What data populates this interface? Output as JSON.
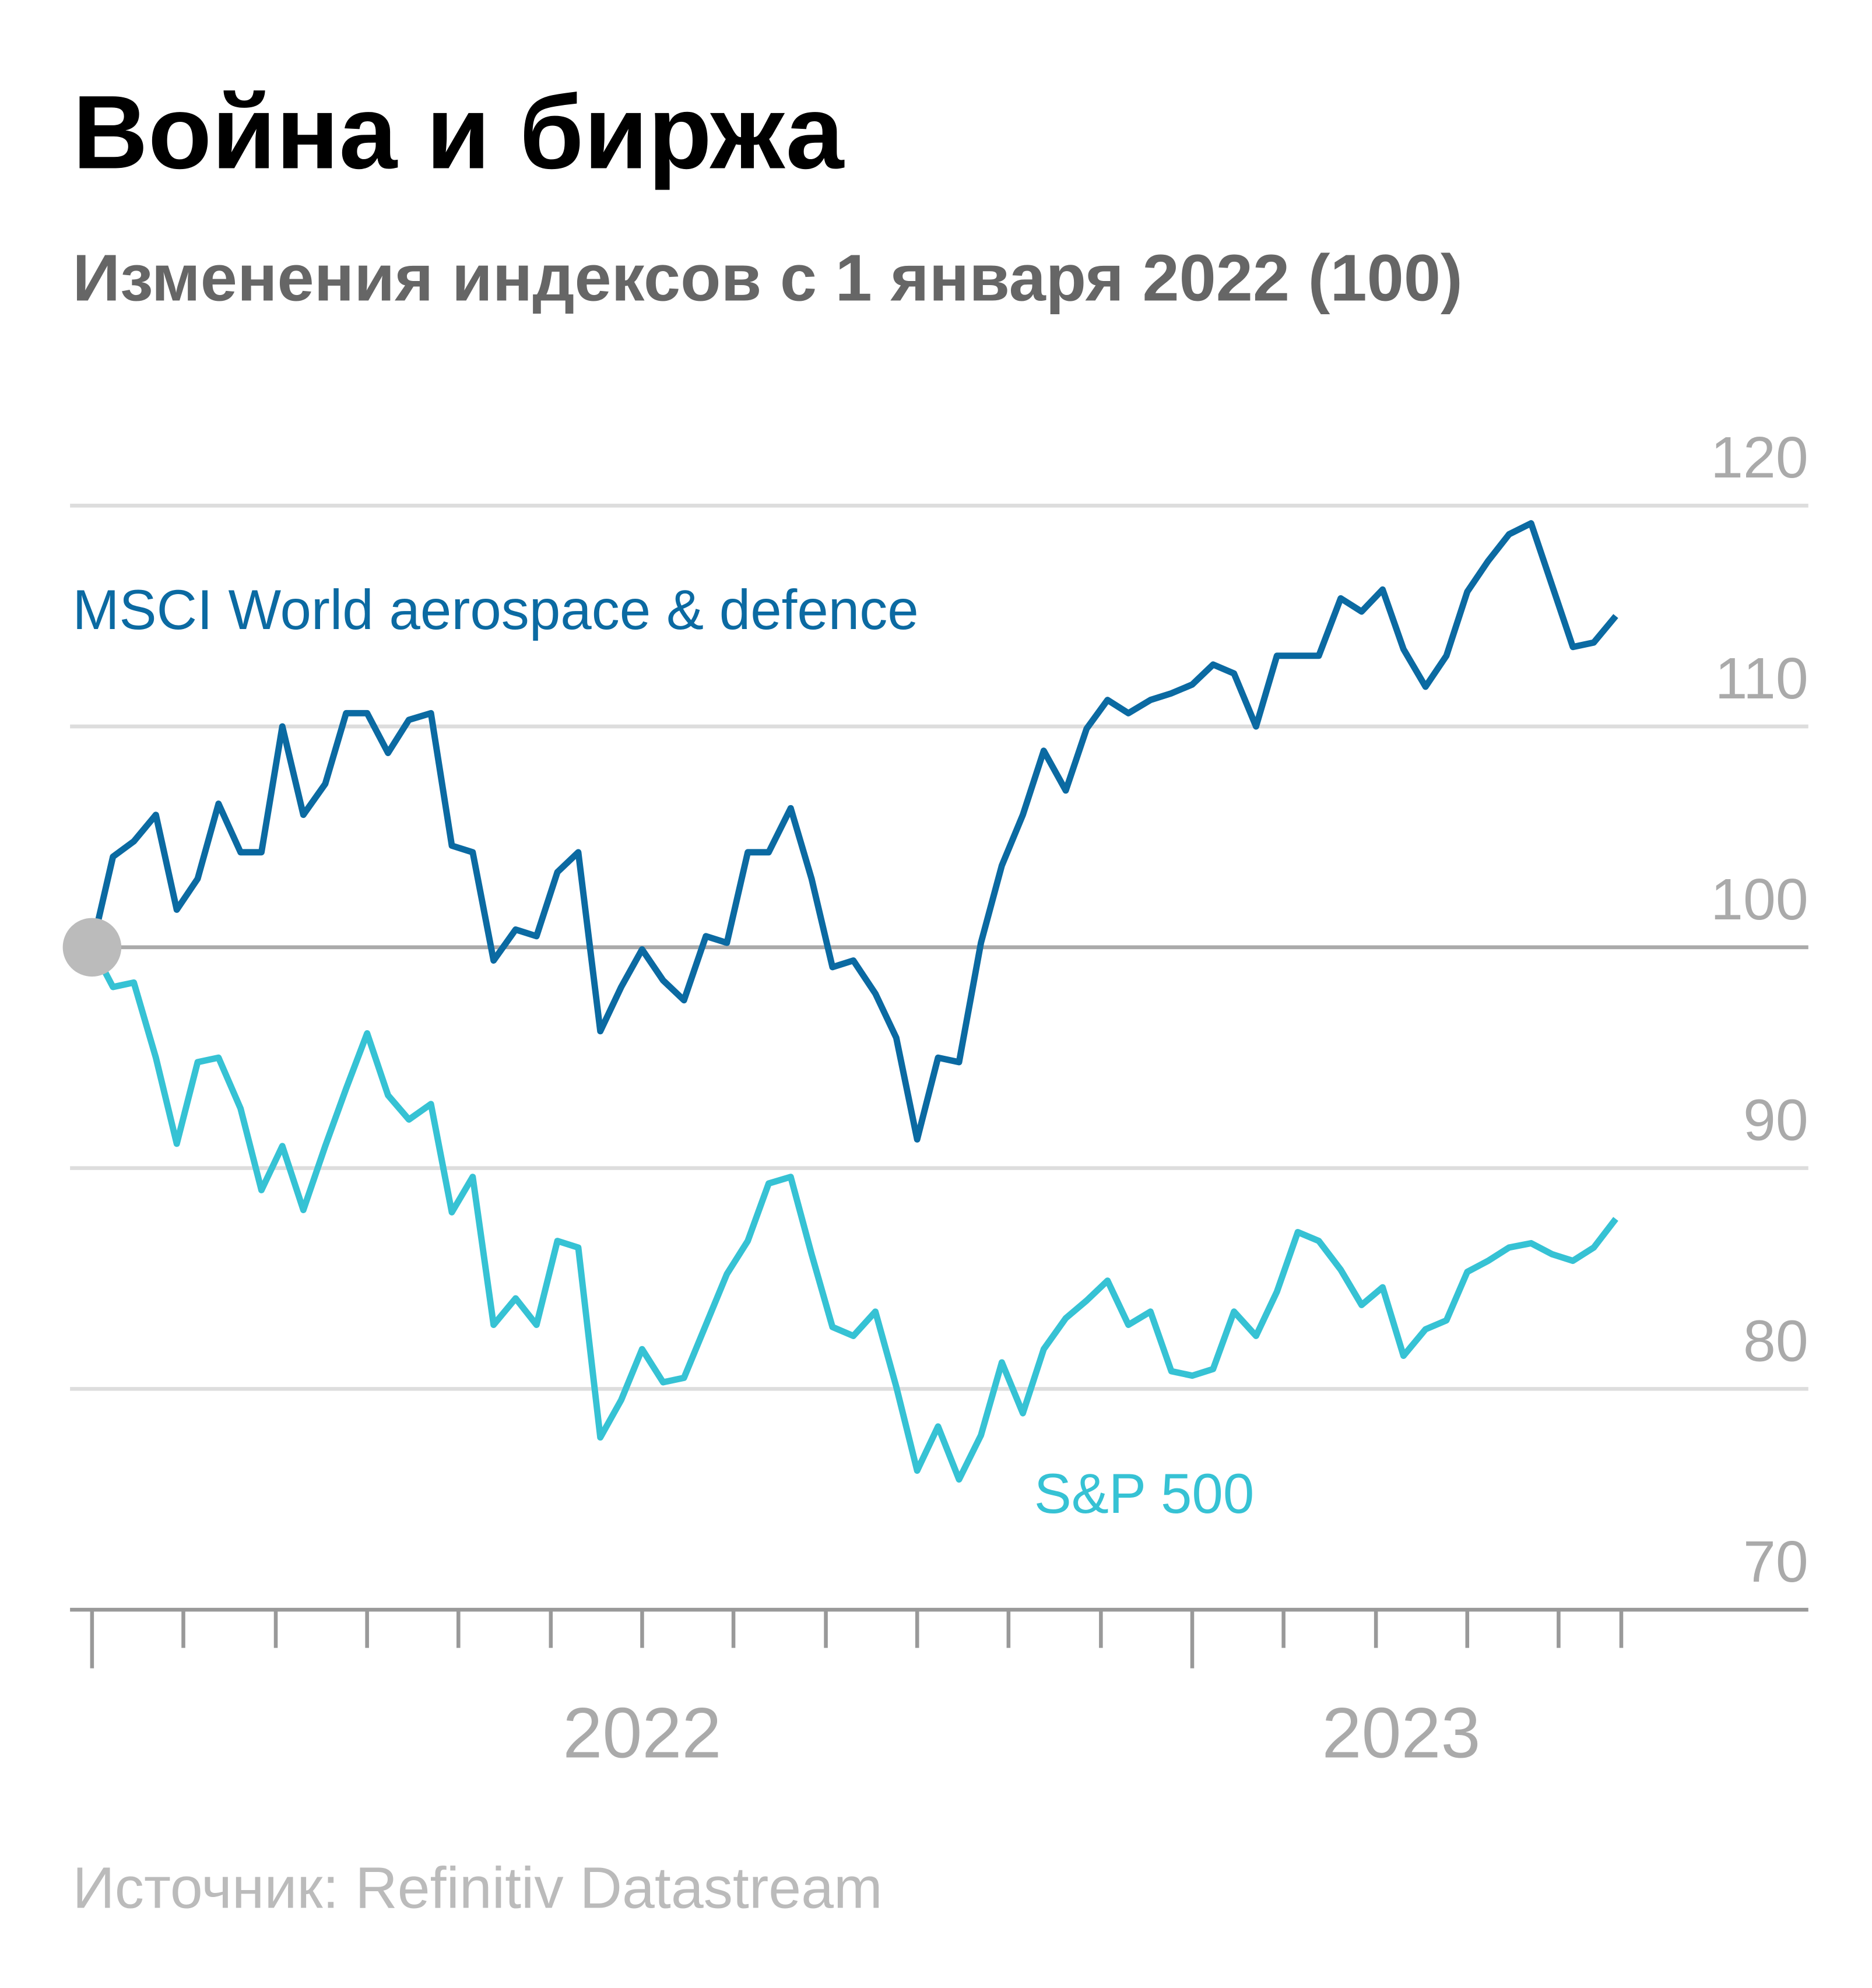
{
  "chart_data": {
    "type": "line",
    "title": "Война и биржа",
    "subtitle": "Изменения индексов с 1 января 2022 (100)",
    "source": "Источник: Refinitiv Datastream",
    "x": [
      2022,
      2022.019,
      2022.038,
      2022.058,
      2022.077,
      2022.096,
      2022.115,
      2022.135,
      2022.154,
      2022.173,
      2022.192,
      2022.212,
      2022.231,
      2022.25,
      2022.269,
      2022.288,
      2022.308,
      2022.327,
      2022.346,
      2022.365,
      2022.385,
      2022.404,
      2022.423,
      2022.442,
      2022.462,
      2022.481,
      2022.5,
      2022.519,
      2022.538,
      2022.558,
      2022.577,
      2022.596,
      2022.615,
      2022.635,
      2022.654,
      2022.673,
      2022.692,
      2022.712,
      2022.731,
      2022.75,
      2022.769,
      2022.788,
      2022.808,
      2022.827,
      2022.846,
      2022.865,
      2022.885,
      2022.904,
      2022.923,
      2022.942,
      2022.962,
      2022.981,
      2023,
      2023.019,
      2023.038,
      2023.058,
      2023.077,
      2023.096,
      2023.115,
      2023.135,
      2023.154,
      2023.173,
      2023.192,
      2023.212,
      2023.231,
      2023.25,
      2023.269,
      2023.288,
      2023.308,
      2023.327,
      2023.346,
      2023.365,
      2023.385
    ],
    "series": [
      {
        "name": "MSCI World aerospace & defence",
        "color": "#0b6aa2",
        "values": [
          100,
          104.1,
          104.8,
          106.0,
          101.7,
          103.1,
          106.5,
          104.3,
          104.3,
          110.0,
          106.0,
          107.4,
          110.6,
          110.6,
          108.8,
          110.3,
          110.6,
          104.6,
          104.3,
          99.4,
          100.8,
          100.5,
          103.4,
          104.3,
          96.2,
          98.2,
          99.9,
          98.5,
          97.6,
          100.5,
          100.2,
          104.3,
          104.3,
          106.3,
          103.1,
          99.1,
          99.4,
          97.9,
          95.9,
          91.3,
          95.0,
          94.8,
          100.2,
          103.7,
          106.0,
          108.9,
          107.1,
          109.9,
          111.2,
          110.6,
          111.2,
          111.5,
          111.9,
          112.8,
          112.4,
          110.0,
          113.2,
          113.2,
          113.2,
          115.8,
          115.2,
          116.2,
          113.5,
          111.8,
          113.2,
          116.1,
          117.5,
          118.7,
          119.2,
          116.4,
          113.6,
          113.8,
          115.0
        ]
      },
      {
        "name": "S&P 500",
        "color": "#36c2d4",
        "values": [
          100,
          98.2,
          98.4,
          95.0,
          91.1,
          94.8,
          95.0,
          92.7,
          89.0,
          91.0,
          88.1,
          91.0,
          93.6,
          96.1,
          93.3,
          92.2,
          92.9,
          88.0,
          89.6,
          82.9,
          84.1,
          82.9,
          86.7,
          86.4,
          77.8,
          79.5,
          81.8,
          80.3,
          80.5,
          82.9,
          85.2,
          86.7,
          89.3,
          89.6,
          86.1,
          82.8,
          82.4,
          83.5,
          80.1,
          76.3,
          78.3,
          75.9,
          77.9,
          81.2,
          78.9,
          81.8,
          83.2,
          84.0,
          84.9,
          82.9,
          83.5,
          80.8,
          80.6,
          80.9,
          83.5,
          82.4,
          84.4,
          87.1,
          86.7,
          85.4,
          83.8,
          84.6,
          81.5,
          82.7,
          83.1,
          85.3,
          85.8,
          86.4,
          86.6,
          86.1,
          85.8,
          86.4,
          87.7
        ]
      }
    ],
    "xlim": [
      2021.98,
      2023.56
    ],
    "xticks": [
      {
        "value": 2022.5,
        "label": "2022"
      },
      {
        "value": 2023.19,
        "label": "2023"
      }
    ],
    "x_minor_ticks": [
      2022,
      2022.083,
      2022.167,
      2022.25,
      2022.333,
      2022.417,
      2022.5,
      2022.583,
      2022.667,
      2022.75,
      2022.833,
      2022.917,
      2023,
      2023.083,
      2023.167,
      2023.25,
      2023.333,
      2023.39
    ],
    "ylim": [
      70,
      120
    ],
    "yticks": [
      70,
      80,
      90,
      100,
      110,
      120
    ],
    "baseline": 100,
    "grid": true
  }
}
